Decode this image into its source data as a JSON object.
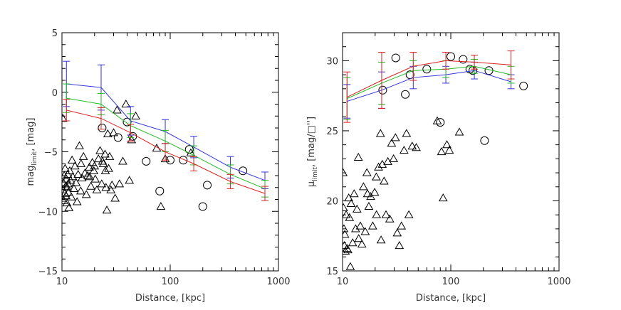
{
  "chart_data": [
    {
      "type": "scatter",
      "xlabel": "Distance, [kpc]",
      "ylabel": "mag",
      "ylabel_sub": "limit",
      "ylabel_unit": ", [mag]",
      "xscale": "log",
      "xlim": [
        10,
        1000
      ],
      "ylim": [
        -15,
        5
      ],
      "xticks": [
        10,
        100,
        1000
      ],
      "xtick_labels": [
        "10",
        "100",
        "1000"
      ],
      "yticks": [
        -15,
        -10,
        -5,
        0,
        5
      ],
      "ytick_labels": [
        "−15",
        "−10",
        "−5",
        "0",
        "5"
      ],
      "grid": false,
      "lines": [
        {
          "color": "#3333dd",
          "x": [
            11,
            23,
            43,
            90,
            165,
            360,
            750
          ],
          "y": [
            0.7,
            0.4,
            -2.4,
            -3.3,
            -4.6,
            -6.3,
            -7.4
          ],
          "err": [
            1.9,
            1.9,
            1.2,
            1.0,
            0.9,
            0.9,
            0.7
          ]
        },
        {
          "color": "#22bb22",
          "x": [
            11,
            23,
            43,
            90,
            165,
            360,
            750
          ],
          "y": [
            -0.5,
            -1.0,
            -2.8,
            -4.1,
            -5.3,
            -6.9,
            -8.1
          ],
          "err": [
            1.2,
            0.9,
            1.0,
            0.9,
            0.8,
            0.8,
            0.7
          ]
        },
        {
          "color": "#dd2222",
          "x": [
            11,
            23,
            43,
            90,
            165,
            360,
            750
          ],
          "y": [
            -1.5,
            -2.2,
            -3.4,
            -5.0,
            -6.0,
            -7.5,
            -8.5
          ],
          "err": [
            0.9,
            0.9,
            0.7,
            0.7,
            0.6,
            0.6,
            0.6
          ]
        }
      ],
      "triangles": [
        [
          10.1,
          -8.9
        ],
        [
          10.2,
          -8.2
        ],
        [
          10.3,
          -7.6
        ],
        [
          10.4,
          -9.1
        ],
        [
          10.5,
          -7.0
        ],
        [
          10.6,
          -8.5
        ],
        [
          10.7,
          -6.4
        ],
        [
          10.8,
          -7.9
        ],
        [
          10.9,
          -8.7
        ],
        [
          11.0,
          -7.3
        ],
        [
          11.1,
          -9.3
        ],
        [
          11.2,
          -8.0
        ],
        [
          11.3,
          -6.9
        ],
        [
          11.4,
          -7.7
        ],
        [
          11.5,
          -8.4
        ],
        [
          11.6,
          -9.7
        ],
        [
          11.8,
          -6.6
        ],
        [
          12.0,
          -7.4
        ],
        [
          12.2,
          -8.8
        ],
        [
          12.4,
          -5.7
        ],
        [
          12.6,
          -7.1
        ],
        [
          12.9,
          -8.1
        ],
        [
          13.2,
          -6.2
        ],
        [
          13.5,
          -7.6
        ],
        [
          13.8,
          -9.2
        ],
        [
          14.1,
          -6.9
        ],
        [
          14.5,
          -4.5
        ],
        [
          14.9,
          -8.3
        ],
        [
          15.3,
          -7.2
        ],
        [
          15.8,
          -5.4
        ],
        [
          16.3,
          -6.8
        ],
        [
          16.8,
          -8.6
        ],
        [
          17.3,
          -7.0
        ],
        [
          17.9,
          -6.3
        ],
        [
          18.5,
          -7.9
        ],
        [
          19.1,
          -5.9
        ],
        [
          19.7,
          -6.6
        ],
        [
          20.3,
          -7.3
        ],
        [
          21.0,
          -8.2
        ],
        [
          21.7,
          -5.6
        ],
        [
          22.5,
          -4.9
        ],
        [
          23.3,
          -7.7
        ],
        [
          24.1,
          -6.0
        ],
        [
          25.0,
          -5.2
        ],
        [
          25.5,
          -8.0
        ],
        [
          26.0,
          -9.9
        ],
        [
          26.5,
          -3.5
        ],
        [
          27.0,
          -6.4
        ],
        [
          27.6,
          -5.4
        ],
        [
          28.3,
          -8.2
        ],
        [
          29.0,
          -7.8
        ],
        [
          30.0,
          -3.4
        ],
        [
          31.0,
          -8.9
        ],
        [
          32.3,
          -1.5
        ],
        [
          34.0,
          -7.7
        ],
        [
          36.5,
          -5.8
        ],
        [
          39.0,
          -1.0
        ],
        [
          42.0,
          -7.4
        ],
        [
          44.0,
          -4.0
        ],
        [
          48.0,
          -2.0
        ],
        [
          75.0,
          -4.7
        ],
        [
          82.0,
          -9.6
        ],
        [
          90.0,
          -5.6
        ],
        [
          155.0,
          -5.1
        ],
        [
          10.2,
          -2.2
        ],
        [
          25.2,
          -6.6
        ],
        [
          23.7,
          -5.8
        ],
        [
          18.0,
          -7.1
        ],
        [
          20.0,
          -6.2
        ],
        [
          15.0,
          -6.0
        ]
      ],
      "circles": [
        [
          23.5,
          -3.0
        ],
        [
          33.0,
          -3.8
        ],
        [
          40.0,
          -2.5
        ],
        [
          45.0,
          -3.7
        ],
        [
          60.0,
          -5.8
        ],
        [
          80.0,
          -8.3
        ],
        [
          100.0,
          -5.7
        ],
        [
          132.0,
          -5.7
        ],
        [
          150.0,
          -4.8
        ],
        [
          200.0,
          -9.6
        ],
        [
          220.0,
          -7.8
        ],
        [
          470.0,
          -6.6
        ]
      ]
    },
    {
      "type": "scatter",
      "xlabel": "Distance, [kpc]",
      "ylabel": "μ",
      "ylabel_sub": "limit",
      "ylabel_unit": ", [mag/□'']",
      "xscale": "log",
      "xlim": [
        10,
        1000
      ],
      "ylim": [
        15,
        32
      ],
      "xticks": [
        10,
        100,
        1000
      ],
      "xtick_labels": [
        "10",
        "100",
        "1000"
      ],
      "yticks": [
        15,
        20,
        25,
        30
      ],
      "ytick_labels": [
        "15",
        "20",
        "25",
        "30"
      ],
      "grid": false,
      "lines": [
        {
          "color": "#3333dd",
          "x": [
            11,
            23,
            45,
            90,
            165,
            360
          ],
          "y": [
            27.1,
            27.9,
            28.8,
            29.0,
            29.3,
            28.5
          ],
          "err": [
            1.2,
            1.3,
            0.8,
            0.6,
            0.6,
            0.5
          ]
        },
        {
          "color": "#22bb22",
          "x": [
            11,
            23,
            45,
            90,
            165,
            360
          ],
          "y": [
            27.3,
            28.4,
            29.3,
            29.4,
            29.6,
            29.0
          ],
          "err": [
            1.5,
            1.5,
            0.7,
            0.6,
            0.5,
            0.6
          ]
        },
        {
          "color": "#dd2222",
          "x": [
            11,
            23,
            45,
            90,
            165,
            360
          ],
          "y": [
            27.4,
            28.6,
            29.6,
            30.0,
            29.9,
            29.7
          ],
          "err": [
            1.8,
            2.0,
            1.0,
            0.6,
            0.5,
            1.0
          ]
        }
      ],
      "triangles": [
        [
          10.1,
          22.0
        ],
        [
          10.2,
          19.5
        ],
        [
          10.3,
          18.0
        ],
        [
          10.4,
          16.8
        ],
        [
          10.5,
          17.6
        ],
        [
          10.6,
          16.4
        ],
        [
          10.8,
          19.0
        ],
        [
          11.0,
          16.6
        ],
        [
          11.2,
          16.5
        ],
        [
          11.4,
          20.2
        ],
        [
          11.6,
          18.8
        ],
        [
          11.8,
          15.3
        ],
        [
          12.0,
          19.8
        ],
        [
          12.4,
          17.0
        ],
        [
          12.8,
          20.5
        ],
        [
          13.2,
          18.0
        ],
        [
          13.6,
          19.4
        ],
        [
          14.1,
          17.3
        ],
        [
          14.6,
          18.2
        ],
        [
          15.1,
          16.9
        ],
        [
          15.6,
          21.0
        ],
        [
          16.2,
          17.8
        ],
        [
          16.8,
          22.0
        ],
        [
          17.5,
          19.6
        ],
        [
          18.2,
          20.3
        ],
        [
          19.0,
          18.2
        ],
        [
          19.8,
          20.6
        ],
        [
          20.6,
          19.0
        ],
        [
          21.5,
          22.4
        ],
        [
          22.4,
          24.8
        ],
        [
          23.3,
          22.6
        ],
        [
          24.2,
          21.4
        ],
        [
          25.2,
          19.0
        ],
        [
          26.2,
          22.8
        ],
        [
          27.3,
          18.7
        ],
        [
          28.4,
          24.1
        ],
        [
          29.6,
          23.0
        ],
        [
          30.8,
          24.5
        ],
        [
          32.0,
          17.7
        ],
        [
          33.5,
          16.8
        ],
        [
          35.0,
          18.2
        ],
        [
          37.0,
          23.6
        ],
        [
          39.0,
          24.8
        ],
        [
          41.0,
          19.0
        ],
        [
          44.0,
          23.9
        ],
        [
          48.0,
          23.8
        ],
        [
          75.0,
          25.7
        ],
        [
          82.0,
          23.5
        ],
        [
          85.0,
          20.2
        ],
        [
          92.0,
          24.0
        ],
        [
          97.0,
          23.6
        ],
        [
          120.0,
          24.9
        ],
        [
          14.0,
          23.1
        ],
        [
          20.5,
          21.7
        ],
        [
          17.0,
          20.5
        ],
        [
          22.7,
          17.2
        ]
      ],
      "circles": [
        [
          23.5,
          27.9
        ],
        [
          31.0,
          30.2
        ],
        [
          38.0,
          27.6
        ],
        [
          42.0,
          29.0
        ],
        [
          60.0,
          29.4
        ],
        [
          80.0,
          25.6
        ],
        [
          100.0,
          30.3
        ],
        [
          130.0,
          30.1
        ],
        [
          150.0,
          29.4
        ],
        [
          160.0,
          29.3
        ],
        [
          205.0,
          24.3
        ],
        [
          225.0,
          29.3
        ],
        [
          470.0,
          28.2
        ]
      ]
    }
  ]
}
